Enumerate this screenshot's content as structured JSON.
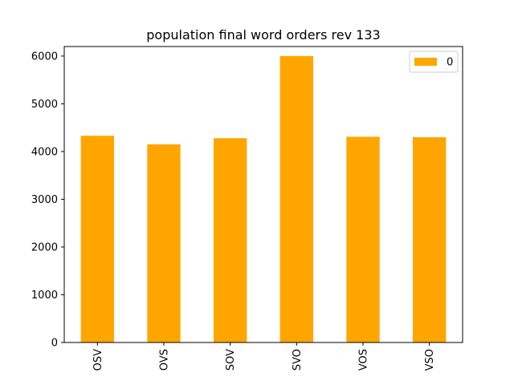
{
  "colors": {
    "bar": "#ffa500",
    "axis": "#000000",
    "background": "#ffffff",
    "legend_border": "#cccccc"
  },
  "chart_data": {
    "type": "bar",
    "title": "population final word orders rev 133",
    "xlabel": "",
    "ylabel": "",
    "categories": [
      "OSV",
      "OVS",
      "SOV",
      "SVO",
      "VOS",
      "VSO"
    ],
    "series": [
      {
        "name": "0",
        "values": [
          4330,
          4150,
          4280,
          6000,
          4310,
          4300
        ]
      }
    ],
    "ylim": [
      0,
      6200
    ],
    "yticks": [
      0,
      1000,
      2000,
      3000,
      4000,
      5000,
      6000
    ],
    "xtick_rotation": "vertical",
    "grid": false,
    "legend_position": "top-right"
  }
}
